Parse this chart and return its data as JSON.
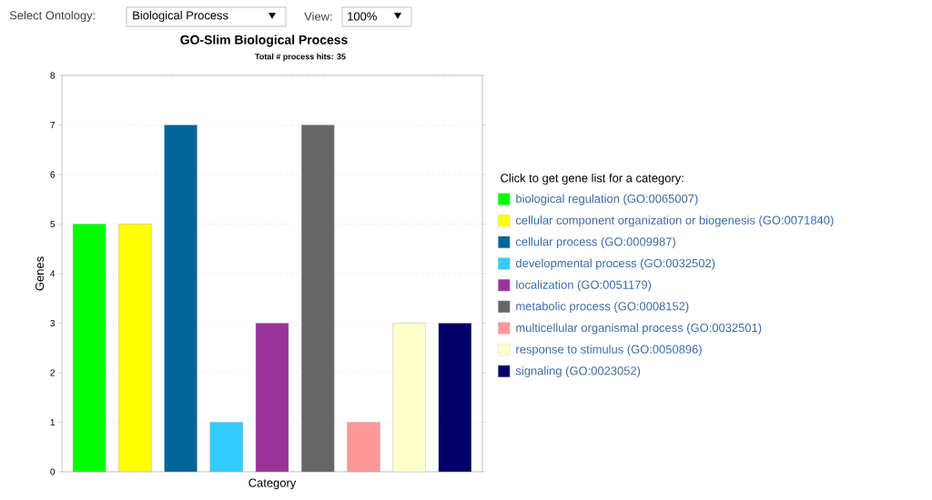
{
  "chart_data": {
    "type": "bar",
    "title": "GO-Slim Biological Process",
    "subtitle": "Total # process hits: 35",
    "xlabel": "Category",
    "ylabel": "Genes",
    "legend_title": "Click to get gene list for a category:",
    "categories": [
      null,
      null,
      null,
      null,
      null,
      null,
      null,
      null,
      null
    ],
    "series": [
      {
        "name": "biological regulation (GO:0065007)",
        "color": "#00ff00",
        "values": [
          5,
          null,
          null,
          null,
          null,
          null,
          null,
          null,
          null
        ]
      },
      {
        "name": "cellular component organization or biogenesis (GO:0071840)",
        "color": "#ffff00",
        "values": [
          null,
          5,
          null,
          null,
          null,
          null,
          null,
          null,
          null
        ]
      },
      {
        "name": "cellular process (GO:0009987)",
        "color": "#006699",
        "values": [
          null,
          null,
          7,
          null,
          null,
          null,
          null,
          null,
          null
        ]
      },
      {
        "name": "developmental process (GO:0032502)",
        "color": "#33ccff",
        "values": [
          null,
          null,
          null,
          1,
          null,
          null,
          null,
          null,
          null
        ]
      },
      {
        "name": "localization (GO:0051179)",
        "color": "#993399",
        "values": [
          null,
          null,
          null,
          null,
          3,
          null,
          null,
          null,
          null
        ]
      },
      {
        "name": "metabolic process (GO:0008152)",
        "color": "#666666",
        "values": [
          null,
          null,
          null,
          null,
          null,
          7,
          null,
          null,
          null
        ]
      },
      {
        "name": "multicellular organismal process (GO:0032501)",
        "color": "#ff9999",
        "values": [
          null,
          null,
          null,
          null,
          null,
          null,
          1,
          null,
          null
        ]
      },
      {
        "name": "response to stimulus (GO:0050896)",
        "color": "#ffffcc",
        "values": [
          null,
          null,
          null,
          null,
          null,
          null,
          null,
          3,
          null
        ]
      },
      {
        "name": "signaling (GO:0023052)",
        "color": "#000066",
        "values": [
          null,
          null,
          null,
          null,
          null,
          null,
          null,
          null,
          3
        ]
      }
    ],
    "ylim": [
      0,
      8
    ],
    "yticks": [
      0,
      1,
      2,
      3,
      4,
      5,
      6,
      7,
      8
    ],
    "grid": "y",
    "legend": "right",
    "tick_labels": "y",
    "annotations": [
      "Select Ontology:",
      "Biological Process",
      "View:",
      "100%"
    ]
  }
}
